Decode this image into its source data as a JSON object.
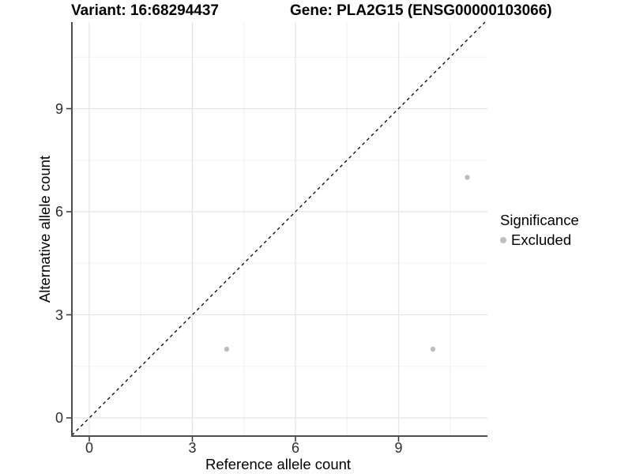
{
  "header": {
    "variant_title": "Variant: 16:68294437",
    "gene_title": "Gene: PLA2G15 (ENSG00000103066)"
  },
  "chart_data": {
    "type": "scatter",
    "title_left": "Variant: 16:68294437",
    "title_right": "Gene: PLA2G15 (ENSG00000103066)",
    "xlabel": "Reference allele count",
    "ylabel": "Alternative allele count",
    "xlim": [
      -0.58,
      11.58
    ],
    "ylim": [
      -0.58,
      11.58
    ],
    "xticks": [
      0,
      3,
      6,
      9
    ],
    "yticks": [
      0,
      3,
      6,
      9
    ],
    "minor_ticks": [
      1.5,
      4.5,
      7.5,
      10.5
    ],
    "grid": "major and minor, light gray, no panel border, left and bottom axis lines only",
    "identity_line": {
      "equation": "y = x",
      "style": "dashed",
      "color": "#000000"
    },
    "series": [
      {
        "name": "Excluded",
        "color": "#bdbdbd",
        "points": [
          [
            4,
            2
          ],
          [
            10,
            2
          ],
          [
            11,
            7
          ]
        ]
      }
    ],
    "legend": {
      "title": "Significance",
      "position": "right",
      "entries": [
        {
          "label": "Excluded",
          "color": "#bdbdbd",
          "marker": "dot"
        }
      ]
    },
    "colors": {
      "axis_line": "#4d4d4d",
      "tick_mark": "#333333",
      "grid_major": "#e4e4e4",
      "grid_minor": "#f0f0f0",
      "point": "#bdbdbd",
      "identity_line": "#000000"
    }
  }
}
